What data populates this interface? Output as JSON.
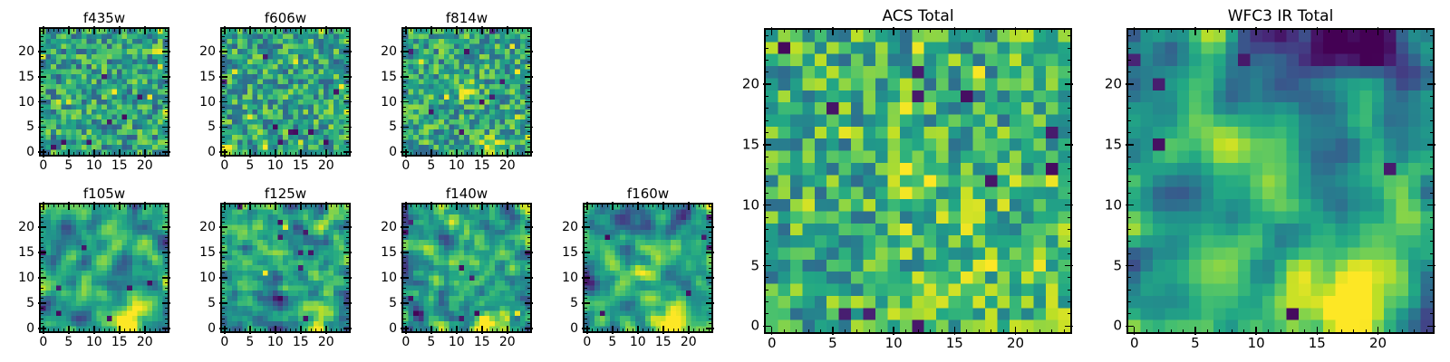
{
  "figure": {
    "background_color": "#ffffff",
    "axis_color": "#000000",
    "text_color": "#000000"
  },
  "chart_data": {
    "type": "heatmap",
    "colormap": "viridis",
    "colormap_stops": [
      {
        "t": 0.0,
        "color": "#440154"
      },
      {
        "t": 0.1,
        "color": "#482475"
      },
      {
        "t": 0.2,
        "color": "#414487"
      },
      {
        "t": 0.3,
        "color": "#355f8d"
      },
      {
        "t": 0.4,
        "color": "#2a788e"
      },
      {
        "t": 0.5,
        "color": "#21918c"
      },
      {
        "t": 0.6,
        "color": "#22a884"
      },
      {
        "t": 0.7,
        "color": "#44bf70"
      },
      {
        "t": 0.8,
        "color": "#7ad151"
      },
      {
        "t": 0.9,
        "color": "#bddf26"
      },
      {
        "t": 1.0,
        "color": "#fde725"
      }
    ],
    "grid": [
      25,
      25
    ],
    "x_range": [
      -0.5,
      24.5
    ],
    "y_range": [
      -0.5,
      24.5
    ],
    "x_ticks": [
      0,
      5,
      10,
      15,
      20
    ],
    "y_ticks": [
      0,
      5,
      10,
      15,
      20
    ],
    "minor_tick_interval": 1,
    "tick_direction": "inout",
    "panels": [
      {
        "title": "f435w",
        "kind": "noisy",
        "seed": 7,
        "smooth_sigma": 0,
        "base": 0.58,
        "noise_amp": 0.16,
        "dark_outliers": 9,
        "bright_outliers": 10,
        "gradient_top": 0,
        "blobs": []
      },
      {
        "title": "f606w",
        "kind": "noisy",
        "seed": 11,
        "smooth_sigma": 0,
        "base": 0.57,
        "noise_amp": 0.16,
        "dark_outliers": 9,
        "bright_outliers": 9,
        "gradient_top": 0,
        "blobs": [
          {
            "x": 0.5,
            "y": 0.5,
            "amp": 0.38,
            "sigma": 0.9
          }
        ]
      },
      {
        "title": "f814w",
        "kind": "noisy",
        "seed": 13,
        "smooth_sigma": 0,
        "base": 0.58,
        "noise_amp": 0.16,
        "dark_outliers": 8,
        "bright_outliers": 8,
        "gradient_top": 0,
        "blobs": [
          {
            "x": 11.5,
            "y": 12.5,
            "amp": 0.36,
            "sigma": 1.2
          },
          {
            "x": 17,
            "y": 0.5,
            "amp": 0.3,
            "sigma": 1.8
          }
        ]
      },
      {
        "title": "f105w",
        "kind": "smooth",
        "seed": 21,
        "smooth_sigma": 0.9,
        "base": 0.55,
        "noise_amp": 0.14,
        "dark_outliers": 8,
        "bright_outliers": 0,
        "gradient_top": 0,
        "blobs": [
          {
            "x": 17,
            "y": 1,
            "amp": 0.45,
            "sigma": 2.6
          },
          {
            "x": 11,
            "y": 11.5,
            "amp": 0.25,
            "sigma": 2.2
          }
        ]
      },
      {
        "title": "f125w",
        "kind": "smooth",
        "seed": 22,
        "smooth_sigma": 0.75,
        "base": 0.56,
        "noise_amp": 0.14,
        "dark_outliers": 8,
        "bright_outliers": 2,
        "gradient_top": 0,
        "blobs": [
          {
            "x": 17,
            "y": 0.5,
            "amp": 0.34,
            "sigma": 2.2
          },
          {
            "x": 23.5,
            "y": 15,
            "amp": 0.3,
            "sigma": 1.6
          },
          {
            "x": 11.3,
            "y": 5.8,
            "amp": -0.5,
            "sigma": 1.1
          }
        ]
      },
      {
        "title": "f140w",
        "kind": "smooth",
        "seed": 23,
        "smooth_sigma": 0.75,
        "base": 0.55,
        "noise_amp": 0.14,
        "dark_outliers": 8,
        "bright_outliers": 2,
        "gradient_top": 0,
        "blobs": [
          {
            "x": 16.5,
            "y": 0.5,
            "amp": 0.4,
            "sigma": 1.9
          },
          {
            "x": 2,
            "y": 3,
            "amp": -0.45,
            "sigma": 1.2
          },
          {
            "x": 13,
            "y": 12,
            "amp": 0.22,
            "sigma": 2.2
          },
          {
            "x": 10.5,
            "y": 20.5,
            "amp": 0.2,
            "sigma": 1.5
          }
        ]
      },
      {
        "title": "f160w",
        "kind": "smooth",
        "seed": 24,
        "smooth_sigma": 0.9,
        "base": 0.55,
        "noise_amp": 0.14,
        "dark_outliers": 6,
        "bright_outliers": 0,
        "gradient_top": 0,
        "blobs": [
          {
            "x": 16.5,
            "y": 1.5,
            "amp": 0.48,
            "sigma": 2.5
          },
          {
            "x": 12,
            "y": 11.5,
            "amp": 0.32,
            "sigma": 2.4
          },
          {
            "x": 19,
            "y": 23.5,
            "amp": -0.35,
            "sigma": 2.0
          },
          {
            "x": 0.5,
            "y": 20.5,
            "amp": -0.3,
            "sigma": 0.9
          }
        ]
      },
      {
        "title": "ACS Total",
        "kind": "noisy",
        "seed": 31,
        "smooth_sigma": 0,
        "base": 0.62,
        "noise_amp": 0.16,
        "dark_outliers": 12,
        "bright_outliers": 10,
        "gradient_top": 0,
        "blobs": [
          {
            "x": 12,
            "y": 12.5,
            "amp": 0.26,
            "sigma": 1.7
          },
          {
            "x": 18,
            "y": 4,
            "amp": 0.12,
            "sigma": 5.0
          }
        ]
      },
      {
        "title": "WFC3 IR Total",
        "kind": "smooth",
        "seed": 41,
        "smooth_sigma": 1.0,
        "base": 0.53,
        "noise_amp": 0.13,
        "dark_outliers": 7,
        "bright_outliers": 0,
        "gradient_top": -0.16,
        "blobs": [
          {
            "x": 17.5,
            "y": 1.5,
            "amp": 0.52,
            "sigma": 2.8
          },
          {
            "x": 11,
            "y": 12.5,
            "amp": 0.34,
            "sigma": 1.9
          },
          {
            "x": 19,
            "y": 5.5,
            "amp": 0.28,
            "sigma": 1.7
          },
          {
            "x": 16,
            "y": 23.5,
            "amp": -0.4,
            "sigma": 1.9
          },
          {
            "x": 20.5,
            "y": 22.5,
            "amp": -0.35,
            "sigma": 1.6
          },
          {
            "x": 2.5,
            "y": 22.5,
            "amp": -0.25,
            "sigma": 1.2
          }
        ]
      }
    ]
  }
}
